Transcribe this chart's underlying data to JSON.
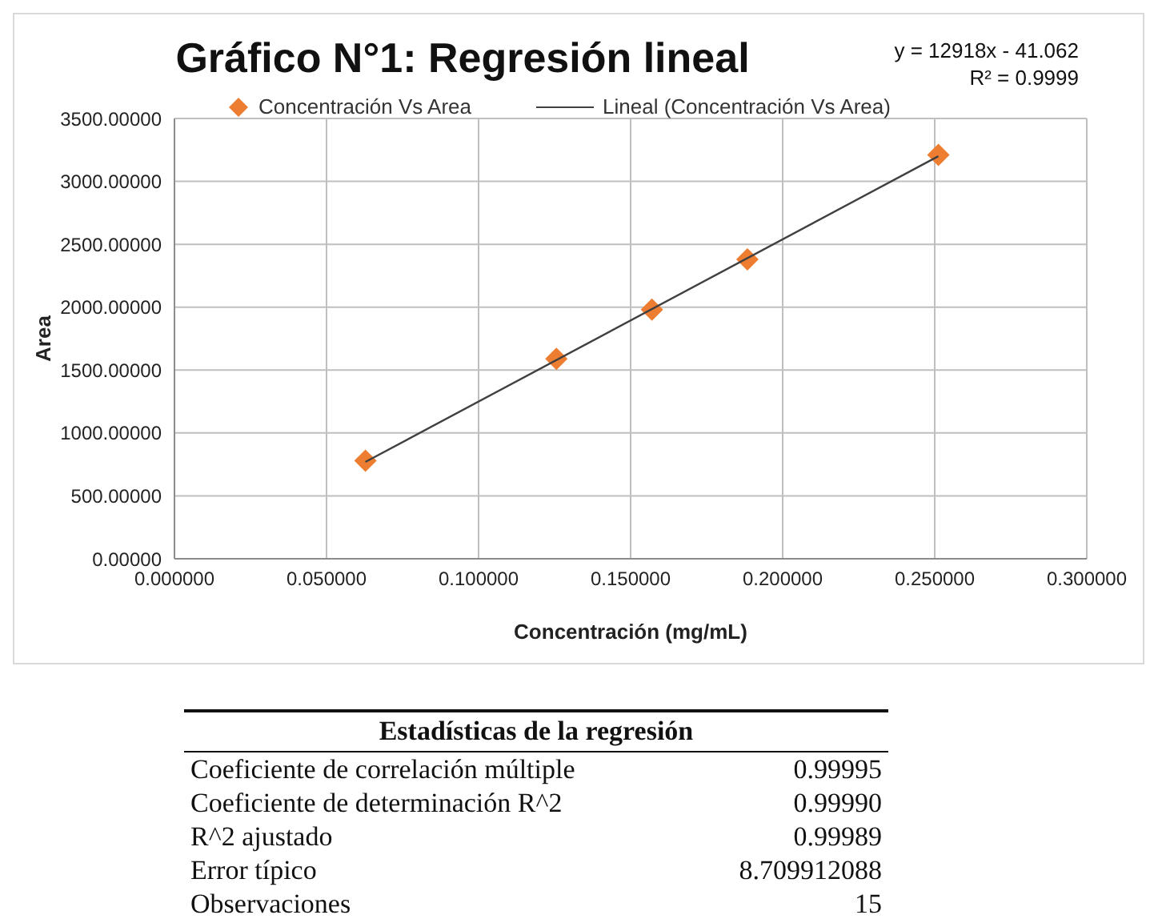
{
  "chart_data": [
    {
      "type": "scatter",
      "title": "Gráfico N°1: Regresión lineal",
      "xlabel": "Concentración (mg/mL)",
      "ylabel": "Area",
      "annotations": [
        "y = 12918x - 41.062",
        "R² = 0.9999"
      ],
      "xlim": [
        0,
        0.3
      ],
      "xticks": [
        {
          "value": 0,
          "label": "0.000000"
        },
        {
          "value": 0.05,
          "label": "0.050000"
        },
        {
          "value": 0.1,
          "label": "0.100000"
        },
        {
          "value": 0.15,
          "label": "0.150000"
        },
        {
          "value": 0.2,
          "label": "0.200000"
        },
        {
          "value": 0.25,
          "label": "0.250000"
        },
        {
          "value": 0.3,
          "label": "0.300000"
        }
      ],
      "ylim": [
        0,
        3500
      ],
      "yticks": [
        {
          "value": 0,
          "label": "0.00000"
        },
        {
          "value": 500,
          "label": "500.00000"
        },
        {
          "value": 1000,
          "label": "1000.00000"
        },
        {
          "value": 1500,
          "label": "1500.00000"
        },
        {
          "value": 2000,
          "label": "2000.00000"
        },
        {
          "value": 2500,
          "label": "2500.00000"
        },
        {
          "value": 3000,
          "label": "3000.00000"
        },
        {
          "value": 3500,
          "label": "3500.00000"
        }
      ],
      "grid": true,
      "legend": "top",
      "marker": "diamond",
      "series": [
        {
          "name": "Concentración Vs Area",
          "type": "scatter",
          "color": "#ed7d31",
          "x": [
            0.0628,
            0.1256,
            0.157,
            0.1884,
            0.2512
          ],
          "values": [
            780,
            1590,
            1980,
            2380,
            3210
          ]
        },
        {
          "name": "Lineal (Concentración Vs Area)",
          "type": "line",
          "color": "#404040",
          "marker": "none",
          "x": [
            0.0628,
            0.2512
          ],
          "values": [
            770,
            3200
          ]
        }
      ]
    },
    {
      "type": "other",
      "title": "Estadísticas de la regresión",
      "annotations": [
        "Coeficiente de correlación múltiple",
        "0.99995",
        "Coeficiente de determinación R^2",
        "0.99990",
        "R^2  ajustado",
        "0.99989",
        "Error típico",
        "8.709912088",
        "Observaciones",
        "15"
      ]
    }
  ]
}
